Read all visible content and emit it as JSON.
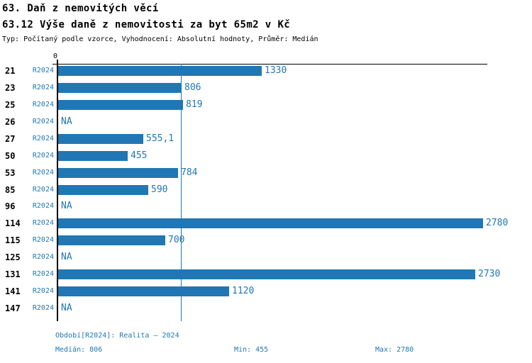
{
  "header": {
    "title1": "63. Daň z nemovitých věcí",
    "title2": "63.12 Výše daně z nemovitosti za byt 65m2 v Kč",
    "subtitle": "Typ: Počítaný podle vzorce, Vyhodnocení: Absolutní hodnoty, Průměr: Medián"
  },
  "colors": {
    "accent": "#2077b4",
    "axis": "#000000",
    "background": "#ffffff"
  },
  "chart_data": {
    "type": "bar",
    "orientation": "horizontal",
    "title": "63.12 Výše daně z nemovitosti za byt 65m2 v Kč",
    "xlabel": "",
    "ylabel": "",
    "axis_zero_label": "0",
    "series_label": "R2024",
    "categories": [
      "21",
      "23",
      "25",
      "26",
      "27",
      "50",
      "53",
      "85",
      "96",
      "114",
      "115",
      "125",
      "131",
      "141",
      "147"
    ],
    "values": [
      1330,
      806,
      819,
      null,
      555.1,
      455,
      784,
      590,
      null,
      2780,
      700,
      null,
      2730,
      1120,
      null
    ],
    "value_labels": [
      "1330",
      "806",
      "819",
      "NA",
      "555,1",
      "455",
      "784",
      "590",
      "NA",
      "2780",
      "700",
      "NA",
      "2730",
      "1120",
      "NA"
    ],
    "na_label": "NA",
    "xlim": [
      0,
      2810
    ],
    "median_reference": 806,
    "grid": false,
    "legend_position": "none",
    "stats": {
      "median": 806,
      "min": 455,
      "max": 2780
    }
  },
  "footer": {
    "period": "Období[R2024]: Realita – 2024",
    "median_label": "Medián: 806",
    "min_label": "Min: 455",
    "max_label": "Max: 2780"
  }
}
